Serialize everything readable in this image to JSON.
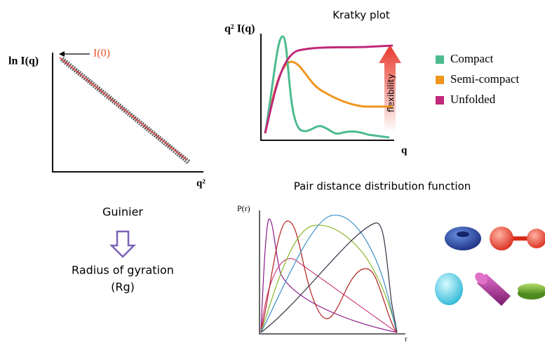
{
  "guinier": {
    "y_label": "ln I(q)",
    "i0_label": "I(0)",
    "x_label": "q²",
    "method": "Guinier",
    "result_lines": [
      "Radius of gyration",
      "(Rg)"
    ]
  },
  "kratky": {
    "title": "Kratky plot",
    "y_label": "q² I(q)",
    "x_label": "q",
    "arrow_label": "flexibility",
    "legend": [
      {
        "label": "Compact",
        "color": "#4dbb8f"
      },
      {
        "label": "Semi-compact",
        "color": "#f0961e"
      },
      {
        "label": "Unfolded",
        "color": "#c0287a"
      }
    ]
  },
  "pddf": {
    "title": "Pair distance distribution function",
    "y_label": "P(r)",
    "x_label": "r"
  }
}
